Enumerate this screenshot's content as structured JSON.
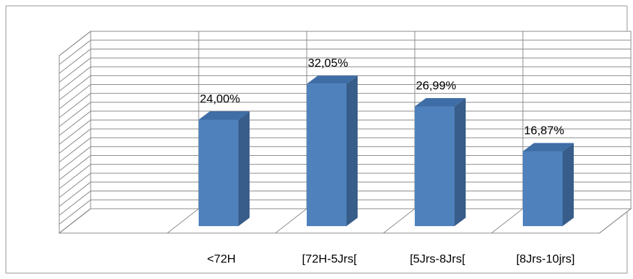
{
  "chart_data": {
    "type": "bar",
    "categories": [
      null,
      "<72H",
      "[72H-5Jrs[",
      "[5Jrs-8Jrs[",
      "[8Jrs-10jrs]"
    ],
    "values": [
      null,
      24,
      32.05,
      26.99,
      16.87
    ],
    "value_labels": [
      null,
      "24,00%",
      "32,05%",
      "26,99%",
      "16,87%"
    ],
    "color": "#4f81bd",
    "ylim": [
      0,
      40
    ],
    "yticks": [
      0,
      2,
      4,
      6,
      8,
      10,
      12,
      14,
      16,
      18,
      20,
      22,
      24,
      26,
      28,
      30,
      32,
      34,
      36,
      38,
      40
    ],
    "grid": true
  }
}
